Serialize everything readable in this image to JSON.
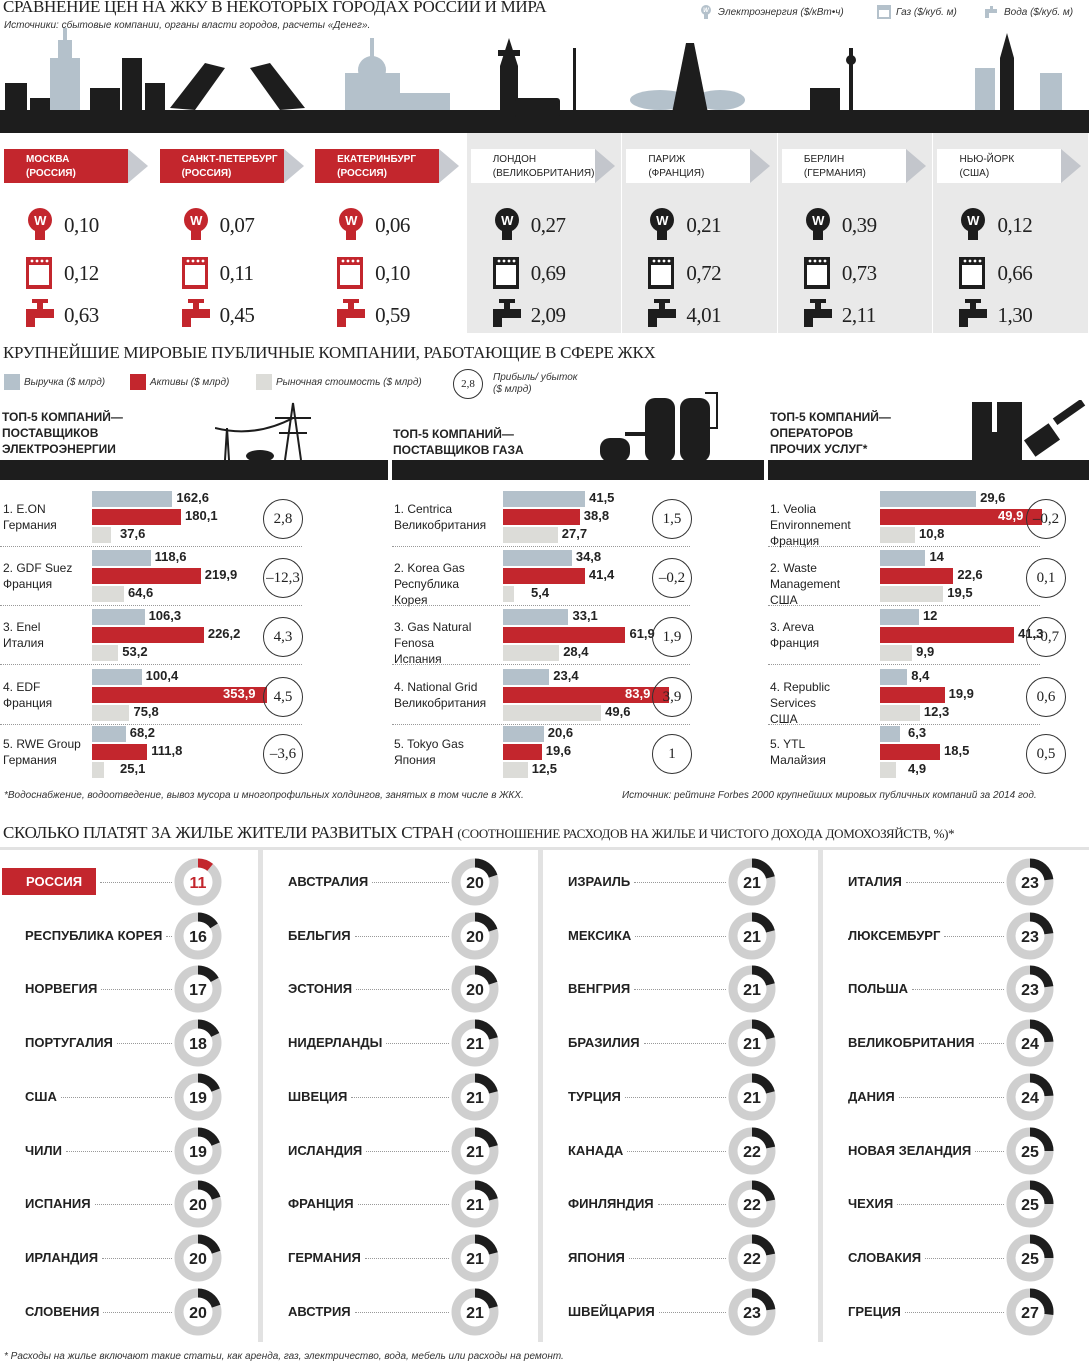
{
  "section1": {
    "title": "Сравнение цен на ЖКУ в некоторых городах России и мира",
    "sources": "Источники: сбытовые компании, органы власти городов, расчеты «Денег».",
    "legend": {
      "electricity": "Электроэнергия ($/кВт•ч)",
      "gas": "Газ ($/куб. м)",
      "water": "Вода ($/куб. м)"
    },
    "cities": [
      {
        "name": "Москва",
        "country": "(Россия)",
        "electricity": "0,10",
        "gas": "0,12",
        "water": "0,63",
        "russian": true
      },
      {
        "name": "Санкт-Петербург",
        "country": "(Россия)",
        "electricity": "0,07",
        "gas": "0,11",
        "water": "0,45",
        "russian": true
      },
      {
        "name": "Екатеринбург",
        "country": "(Россия)",
        "electricity": "0,06",
        "gas": "0,10",
        "water": "0,59",
        "russian": true
      },
      {
        "name": "Лондон",
        "country": "(Великобритания)",
        "electricity": "0,27",
        "gas": "0,69",
        "water": "2,09",
        "russian": false
      },
      {
        "name": "Париж",
        "country": "(Франция)",
        "electricity": "0,21",
        "gas": "0,72",
        "water": "4,01",
        "russian": false
      },
      {
        "name": "Берлин",
        "country": "(Германия)",
        "electricity": "0,39",
        "gas": "0,73",
        "water": "2,11",
        "russian": false
      },
      {
        "name": "Нью-Йорк",
        "country": "(США)",
        "electricity": "0,12",
        "gas": "0,66",
        "water": "1,30",
        "russian": false
      }
    ]
  },
  "section2": {
    "title": "Крупнейшие мировые публичные компании, работающие в сфере ЖКХ",
    "legend": {
      "revenue": "Выручка ($ млрд)",
      "assets": "Активы ($ млрд)",
      "market": "Рыночная стоимость ($ млрд)",
      "profit_sample": "2,8",
      "profit": "Прибыль/ убыток ($ млрд)"
    },
    "groups": [
      {
        "heading": [
          "ТОП-5 КОМПАНИЙ—",
          "ПОСТАВЩИКОВ",
          "ЭЛЕКТРОЭНЕРГИИ"
        ]
      },
      {
        "heading": [
          "ТОП-5 КОМПАНИЙ—",
          "ПОСТАВЩИКОВ ГАЗА"
        ]
      },
      {
        "heading": [
          "ТОП-5 КОМПАНИЙ—",
          "ОПЕРАТОРОВ",
          "ПРОЧИХ УСЛУГ*"
        ]
      }
    ],
    "footnote": "*Водоснабжение, водоотведение, вывоз мусора и многопрофильных холдингов, занятых в том числе в ЖКХ.",
    "source": "Источник: рейтинг Forbes 2000 крупнейших мировых публичных компаний за 2014 год."
  },
  "section3": {
    "title": "Сколько платят за жилье жители развитых стран",
    "subtitle": "(соотношение расходов на жилье и чистого дохода домохозяйств, %)*",
    "footnote": "* Расходы на жилье включают такие статьи, как аренда, газ, электричество, вода, мебель или расходы на ремонт."
  },
  "colors": {
    "red": "#c3262d",
    "blue_gray": "#b4c1cb",
    "light_gray": "#dcdcd8",
    "dark": "#1d1d1d"
  },
  "chart_data": [
    {
      "type": "table",
      "title": "Сравнение цен на ЖКУ в некоторых городах России и мира",
      "columns": [
        "Электроэнергия ($/кВт•ч)",
        "Газ ($/куб. м)",
        "Вода ($/куб. м)"
      ],
      "rows": [
        [
          "Москва (Россия)",
          0.1,
          0.12,
          0.63
        ],
        [
          "Санкт-Петербург (Россия)",
          0.07,
          0.11,
          0.45
        ],
        [
          "Екатеринбург (Россия)",
          0.06,
          0.1,
          0.59
        ],
        [
          "Лондон (Великобритания)",
          0.27,
          0.69,
          2.09
        ],
        [
          "Париж (Франция)",
          0.21,
          0.72,
          4.01
        ],
        [
          "Берлин (Германия)",
          0.39,
          0.73,
          2.11
        ],
        [
          "Нью-Йорк (США)",
          0.12,
          0.66,
          1.3
        ]
      ]
    },
    {
      "type": "bar",
      "title": "ТОП-5 компаний — поставщиков электроэнергии",
      "companies": [
        {
          "name": "1. E.ON",
          "country": "Германия",
          "revenue": 162.6,
          "assets": 180.1,
          "market": 37.6,
          "profit": 2.8
        },
        {
          "name": "2. GDF Suez",
          "country": "Франция",
          "revenue": 118.6,
          "assets": 219.9,
          "market": 64.6,
          "profit": -12.3
        },
        {
          "name": "3. Enel",
          "country": "Италия",
          "revenue": 106.3,
          "assets": 226.2,
          "market": 53.2,
          "profit": 4.3
        },
        {
          "name": "4. EDF",
          "country": "Франция",
          "revenue": 100.4,
          "assets": 353.9,
          "market": 75.8,
          "profit": 4.5
        },
        {
          "name": "5. RWE Group",
          "country": "Германия",
          "revenue": 68.2,
          "assets": 111.8,
          "market": 25.1,
          "profit": -3.6
        }
      ]
    },
    {
      "type": "bar",
      "title": "ТОП-5 компаний — поставщиков газа",
      "companies": [
        {
          "name": "1. Centrica",
          "country": "Великобритания",
          "revenue": 41.5,
          "assets": 38.8,
          "market": 27.7,
          "profit": 1.5
        },
        {
          "name": "2. Korea Gas",
          "country": "Республика Корея",
          "revenue": 34.8,
          "assets": 41.4,
          "market": 5.4,
          "profit": -0.2
        },
        {
          "name": "3. Gas Natural Fenosa",
          "country": "Испания",
          "revenue": 33.1,
          "assets": 61.9,
          "market": 28.4,
          "profit": 1.9
        },
        {
          "name": "4. National Grid",
          "country": "Великобритания",
          "revenue": 23.4,
          "assets": 83.9,
          "market": 49.6,
          "profit": 3.9
        },
        {
          "name": "5. Tokyo Gas",
          "country": "Япония",
          "revenue": 20.6,
          "assets": 19.6,
          "market": 12.5,
          "profit": 1.0
        }
      ]
    },
    {
      "type": "bar",
      "title": "ТОП-5 компаний — операторов прочих услуг*",
      "companies": [
        {
          "name": "1. Veolia Environnement",
          "country": "Франция",
          "revenue": 29.6,
          "assets": 49.9,
          "market": 10.8,
          "profit": -0.2
        },
        {
          "name": "2. Waste Management",
          "country": "США",
          "revenue": 14,
          "assets": 22.6,
          "market": 19.5,
          "profit": 0.1
        },
        {
          "name": "3. Areva",
          "country": "Франция",
          "revenue": 12,
          "assets": 41.3,
          "market": 9.9,
          "profit": -0.7
        },
        {
          "name": "4. Republic Services",
          "country": "США",
          "revenue": 8.4,
          "assets": 19.9,
          "market": 12.3,
          "profit": 0.6
        },
        {
          "name": "5. YTL",
          "country": "Малайзия",
          "revenue": 6.3,
          "assets": 18.5,
          "market": 4.9,
          "profit": 0.5
        }
      ]
    },
    {
      "type": "pie",
      "title": "Сколько платят за жилье жители развитых стран",
      "unit": "%",
      "columns": [
        [
          [
            "Россия",
            11
          ],
          [
            "Республика Корея",
            16
          ],
          [
            "Норвегия",
            17
          ],
          [
            "Португалия",
            18
          ],
          [
            "США",
            19
          ],
          [
            "Чили",
            19
          ],
          [
            "Испания",
            20
          ],
          [
            "Ирландия",
            20
          ],
          [
            "Словения",
            20
          ]
        ],
        [
          [
            "Австралия",
            20
          ],
          [
            "Бельгия",
            20
          ],
          [
            "Эстония",
            20
          ],
          [
            "Нидерланды",
            21
          ],
          [
            "Швеция",
            21
          ],
          [
            "Исландия",
            21
          ],
          [
            "Франция",
            21
          ],
          [
            "Германия",
            21
          ],
          [
            "Австрия",
            21
          ]
        ],
        [
          [
            "Израиль",
            21
          ],
          [
            "Мексика",
            21
          ],
          [
            "Венгрия",
            21
          ],
          [
            "Бразилия",
            21
          ],
          [
            "Турция",
            21
          ],
          [
            "Канада",
            22
          ],
          [
            "Финляндия",
            22
          ],
          [
            "Япония",
            22
          ],
          [
            "Швейцария",
            23
          ]
        ],
        [
          [
            "Италия",
            23
          ],
          [
            "Люксембург",
            23
          ],
          [
            "Польша",
            23
          ],
          [
            "Великобритания",
            24
          ],
          [
            "Дания",
            24
          ],
          [
            "Новая Зеландия",
            25
          ],
          [
            "Чехия",
            25
          ],
          [
            "Словакия",
            25
          ],
          [
            "Греция",
            27
          ]
        ]
      ]
    }
  ]
}
